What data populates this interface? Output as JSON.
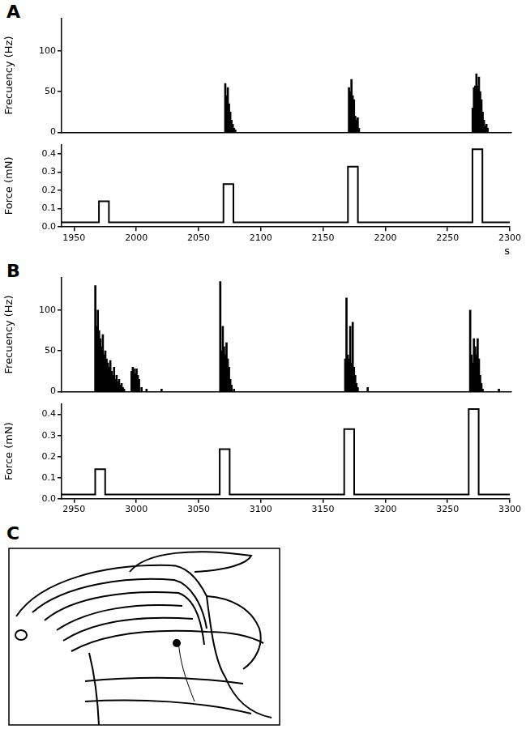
{
  "panel_labels": [
    "A",
    "B",
    "C"
  ],
  "chart_data": [
    {
      "type": "bar",
      "ylabel": "Frecuency (Hz)",
      "color": "#000000",
      "grid": false,
      "tick_labels": "y",
      "x": [
        2071,
        2072,
        2073,
        2074,
        2075,
        2076,
        2077,
        2078,
        2079,
        2170,
        2171,
        2172,
        2173,
        2174,
        2175,
        2176,
        2177,
        2178,
        2269,
        2270,
        2271,
        2272,
        2273,
        2274,
        2275,
        2276,
        2277,
        2278,
        2279,
        2280,
        2281
      ],
      "values": [
        60,
        45,
        55,
        35,
        25,
        15,
        10,
        5,
        3,
        55,
        50,
        65,
        45,
        40,
        20,
        15,
        18,
        5,
        30,
        55,
        57,
        72,
        57,
        68,
        50,
        40,
        25,
        15,
        8,
        10,
        5
      ],
      "xlim": [
        1940,
        2300
      ],
      "ylim": [
        0,
        140
      ],
      "yticks": [
        0,
        50,
        100
      ]
    },
    {
      "type": "line",
      "ylabel": "Force (mN)",
      "xlabel": "s",
      "color": "#000000",
      "grid": false,
      "x": [
        1940,
        1970,
        1970,
        1978,
        1978,
        2070,
        2070,
        2078,
        2078,
        2170,
        2170,
        2178,
        2178,
        2270,
        2270,
        2278,
        2278,
        2300
      ],
      "values": [
        0.025,
        0.025,
        0.14,
        0.14,
        0.025,
        0.025,
        0.235,
        0.235,
        0.025,
        0.025,
        0.33,
        0.33,
        0.025,
        0.025,
        0.425,
        0.425,
        0.025,
        0.025
      ],
      "xlim": [
        1940,
        2300
      ],
      "xticks": [
        1950,
        2000,
        2050,
        2100,
        2150,
        2200,
        2250,
        2300
      ],
      "ylim": [
        0,
        0.45
      ],
      "yticks": [
        {
          "value": 0,
          "label": "0.0"
        },
        0.1,
        0.2,
        0.3,
        0.4
      ]
    },
    {
      "type": "bar",
      "ylabel": "Frecuency (Hz)",
      "color": "#000000",
      "grid": false,
      "tick_labels": "y",
      "x": [
        2967,
        2968,
        2969,
        2970,
        2971,
        2972,
        2973,
        2974,
        2975,
        2976,
        2977,
        2978,
        2979,
        2980,
        2981,
        2982,
        2983,
        2984,
        2985,
        2986,
        2987,
        2988,
        2989,
        2990,
        2996,
        2997,
        2998,
        2999,
        3000,
        3001,
        3002,
        3004,
        3008,
        3020,
        3067,
        3068,
        3069,
        3070,
        3071,
        3072,
        3073,
        3074,
        3075,
        3076,
        3078,
        3167,
        3168,
        3169,
        3170,
        3171,
        3172,
        3173,
        3174,
        3175,
        3176,
        3177,
        3185,
        3267,
        3268,
        3269,
        3270,
        3271,
        3272,
        3273,
        3274,
        3275,
        3276,
        3277,
        3290
      ],
      "values": [
        130,
        80,
        100,
        75,
        65,
        55,
        70,
        45,
        50,
        40,
        35,
        30,
        38,
        25,
        20,
        30,
        15,
        20,
        12,
        15,
        8,
        10,
        5,
        3,
        25,
        30,
        28,
        22,
        28,
        20,
        15,
        5,
        3,
        3,
        135,
        50,
        80,
        55,
        45,
        60,
        40,
        30,
        15,
        8,
        3,
        40,
        115,
        45,
        40,
        80,
        35,
        85,
        30,
        20,
        10,
        5,
        5,
        100,
        45,
        35,
        65,
        55,
        45,
        65,
        40,
        20,
        10,
        3,
        3
      ],
      "xlim": [
        2940,
        3300
      ],
      "ylim": [
        0,
        140
      ],
      "yticks": [
        0,
        50,
        100
      ]
    },
    {
      "type": "line",
      "ylabel": "Force (mN)",
      "color": "#000000",
      "grid": false,
      "x": [
        2940,
        2967,
        2967,
        2975,
        2975,
        3067,
        3067,
        3075,
        3075,
        3167,
        3167,
        3175,
        3175,
        3267,
        3267,
        3275,
        3275,
        3300
      ],
      "values": [
        0.02,
        0.02,
        0.14,
        0.14,
        0.02,
        0.02,
        0.235,
        0.235,
        0.02,
        0.02,
        0.33,
        0.33,
        0.02,
        0.02,
        0.425,
        0.425,
        0.02,
        0.02
      ],
      "xlim": [
        2940,
        3300
      ],
      "xticks": [
        2950,
        3000,
        3050,
        3100,
        3150,
        3200,
        3250,
        3300
      ],
      "ylim": [
        0,
        0.45
      ],
      "yticks": [
        {
          "value": 0,
          "label": "0.0"
        },
        0.1,
        0.2,
        0.3,
        0.4
      ]
    }
  ]
}
